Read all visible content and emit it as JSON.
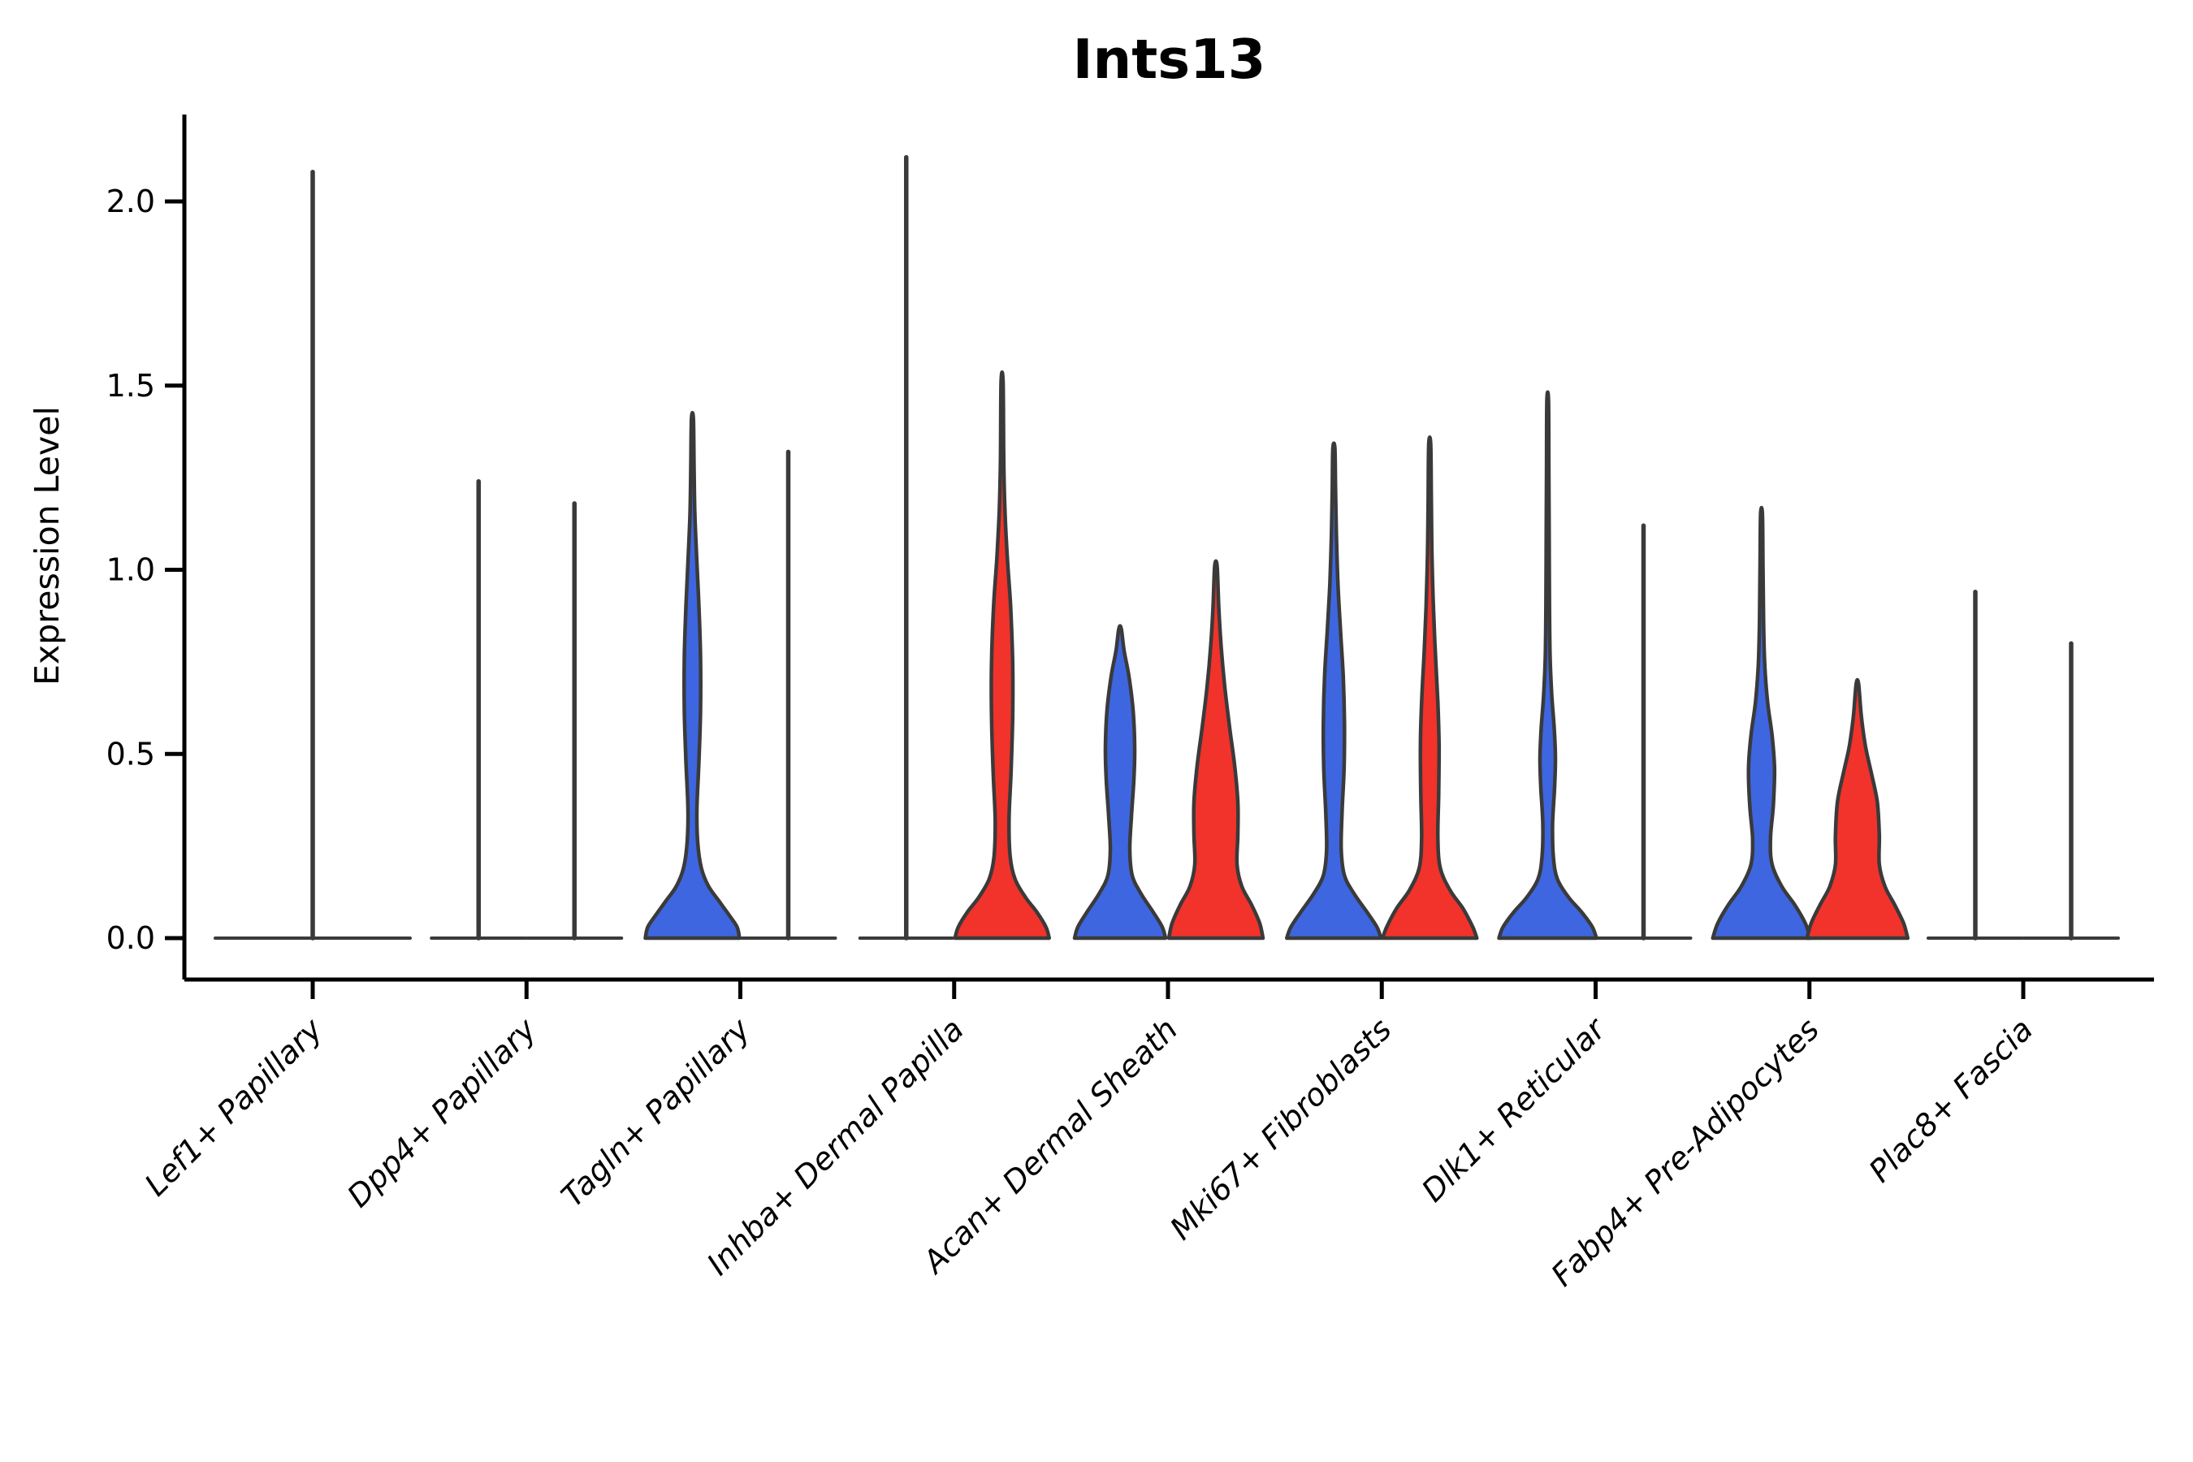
{
  "chart_data": {
    "type": "violin",
    "title": "Ints13",
    "xlabel": "",
    "ylabel": "Expression Level",
    "yticks": [
      {
        "label": "0.0",
        "value": 0.0
      },
      {
        "label": "0.5",
        "value": 0.5
      },
      {
        "label": "1.0",
        "value": 1.0
      },
      {
        "label": "1.5",
        "value": 1.5
      },
      {
        "label": "2.0",
        "value": 2.0
      }
    ],
    "ylim": [
      -0.06,
      2.24
    ],
    "grid": false,
    "legend": null,
    "colors": {
      "blue_fill": "#3E66E0",
      "red_fill": "#F1332B",
      "outline": "#3A3A3A",
      "axis": "#000000"
    },
    "groups": [
      {
        "label": "Lef1+ Papillary",
        "violins": [
          {
            "side": "center",
            "fill": "none",
            "max": 2.08,
            "shape": "spike",
            "base_halfwidth": 120
          }
        ]
      },
      {
        "label": "Dpp4+ Papillary",
        "violins": [
          {
            "side": "left",
            "fill": "blue",
            "max": 1.24,
            "shape": "spike",
            "base_halfwidth": 58
          },
          {
            "side": "right",
            "fill": "red",
            "max": 1.18,
            "shape": "spike",
            "base_halfwidth": 58
          }
        ]
      },
      {
        "label": "Tagln+ Papillary",
        "violins": [
          {
            "side": "left",
            "fill": "blue",
            "max": 1.41,
            "shape": "density",
            "profile": [
              [
                0,
                58
              ],
              [
                0.03,
                55
              ],
              [
                0.06,
                46
              ],
              [
                0.1,
                33
              ],
              [
                0.14,
                20
              ],
              [
                0.19,
                11
              ],
              [
                0.26,
                6.5
              ],
              [
                0.35,
                5.5
              ],
              [
                0.48,
                8
              ],
              [
                0.62,
                10
              ],
              [
                0.76,
                10
              ],
              [
                0.9,
                8
              ],
              [
                1.02,
                5.5
              ],
              [
                1.15,
                3
              ],
              [
                1.28,
                2
              ],
              [
                1.41,
                1.2
              ]
            ]
          },
          {
            "side": "right",
            "fill": "red",
            "max": 1.32,
            "shape": "spike",
            "base_halfwidth": 58
          }
        ]
      },
      {
        "label": "Inhba+ Dermal Papilla",
        "violins": [
          {
            "side": "left",
            "fill": "blue",
            "max": 2.12,
            "shape": "spike",
            "base_halfwidth": 57
          },
          {
            "side": "right",
            "fill": "red",
            "max": 1.51,
            "shape": "density",
            "profile": [
              [
                0,
                58
              ],
              [
                0.03,
                54
              ],
              [
                0.07,
                43
              ],
              [
                0.11,
                29
              ],
              [
                0.16,
                16
              ],
              [
                0.22,
                10
              ],
              [
                0.32,
                8.5
              ],
              [
                0.45,
                11
              ],
              [
                0.6,
                13
              ],
              [
                0.75,
                13
              ],
              [
                0.9,
                10.5
              ],
              [
                1.03,
                6.5
              ],
              [
                1.16,
                3.5
              ],
              [
                1.3,
                2
              ],
              [
                1.51,
                1.2
              ]
            ]
          }
        ]
      },
      {
        "label": "Acan+ Dermal Sheath",
        "violins": [
          {
            "side": "left",
            "fill": "blue",
            "max": 0.84,
            "shape": "density",
            "profile": [
              [
                0,
                56
              ],
              [
                0.03,
                52
              ],
              [
                0.07,
                41
              ],
              [
                0.12,
                26
              ],
              [
                0.17,
                15
              ],
              [
                0.24,
                12
              ],
              [
                0.33,
                14
              ],
              [
                0.43,
                17
              ],
              [
                0.52,
                18
              ],
              [
                0.62,
                16
              ],
              [
                0.71,
                11
              ],
              [
                0.78,
                5
              ],
              [
                0.84,
                1.5
              ]
            ]
          },
          {
            "side": "right",
            "fill": "red",
            "max": 1.01,
            "shape": "density",
            "profile": [
              [
                0,
                58
              ],
              [
                0.04,
                54
              ],
              [
                0.09,
                44
              ],
              [
                0.14,
                32
              ],
              [
                0.2,
                26
              ],
              [
                0.28,
                27
              ],
              [
                0.37,
                27
              ],
              [
                0.47,
                23
              ],
              [
                0.57,
                17
              ],
              [
                0.68,
                11
              ],
              [
                0.79,
                6.5
              ],
              [
                0.9,
                3.5
              ],
              [
                1.01,
                1.5
              ]
            ]
          }
        ]
      },
      {
        "label": "Mki67+ Fibroblasts",
        "violins": [
          {
            "side": "left",
            "fill": "blue",
            "max": 1.33,
            "shape": "density",
            "profile": [
              [
                0,
                58
              ],
              [
                0.03,
                53
              ],
              [
                0.07,
                41
              ],
              [
                0.12,
                25
              ],
              [
                0.17,
                13
              ],
              [
                0.24,
                9
              ],
              [
                0.34,
                10
              ],
              [
                0.46,
                12.5
              ],
              [
                0.58,
                13
              ],
              [
                0.71,
                11.5
              ],
              [
                0.84,
                8
              ],
              [
                0.96,
                5
              ],
              [
                1.1,
                3
              ],
              [
                1.22,
                2
              ],
              [
                1.33,
                1.2
              ]
            ]
          },
          {
            "side": "right",
            "fill": "red",
            "max": 1.34,
            "shape": "density",
            "profile": [
              [
                0,
                58
              ],
              [
                0.03,
                53
              ],
              [
                0.08,
                41
              ],
              [
                0.13,
                25
              ],
              [
                0.19,
                13
              ],
              [
                0.27,
                10
              ],
              [
                0.39,
                11
              ],
              [
                0.52,
                11.5
              ],
              [
                0.64,
                10
              ],
              [
                0.77,
                7
              ],
              [
                0.9,
                4.5
              ],
              [
                1.04,
                2.8
              ],
              [
                1.18,
                2
              ],
              [
                1.34,
                1.2
              ]
            ]
          }
        ]
      },
      {
        "label": "Dlk1+ Reticular",
        "violins": [
          {
            "side": "left",
            "fill": "blue",
            "max": 1.46,
            "shape": "density",
            "profile": [
              [
                0,
                60
              ],
              [
                0.03,
                55
              ],
              [
                0.07,
                42
              ],
              [
                0.11,
                26
              ],
              [
                0.16,
                12
              ],
              [
                0.22,
                7
              ],
              [
                0.31,
                6
              ],
              [
                0.41,
                8.5
              ],
              [
                0.49,
                9.5
              ],
              [
                0.57,
                8
              ],
              [
                0.66,
                5
              ],
              [
                0.76,
                3
              ],
              [
                0.9,
                2.2
              ],
              [
                1.1,
                1.8
              ],
              [
                1.28,
                1.4
              ],
              [
                1.46,
                1
              ]
            ]
          },
          {
            "side": "right",
            "fill": "red",
            "max": 1.12,
            "shape": "spike",
            "base_halfwidth": 58
          }
        ]
      },
      {
        "label": "Fabp4+ Pre-Adipocytes",
        "violins": [
          {
            "side": "left",
            "fill": "blue",
            "max": 1.15,
            "shape": "density",
            "profile": [
              [
                0,
                60
              ],
              [
                0.04,
                54
              ],
              [
                0.09,
                41
              ],
              [
                0.14,
                25
              ],
              [
                0.2,
                13
              ],
              [
                0.27,
                11
              ],
              [
                0.36,
                14.5
              ],
              [
                0.46,
                16
              ],
              [
                0.55,
                13
              ],
              [
                0.64,
                7.5
              ],
              [
                0.74,
                4
              ],
              [
                0.86,
                2.5
              ],
              [
                1.0,
                1.8
              ],
              [
                1.15,
                1.2
              ]
            ]
          },
          {
            "side": "right",
            "fill": "red",
            "max": 0.69,
            "shape": "density",
            "profile": [
              [
                0,
                62
              ],
              [
                0.04,
                57
              ],
              [
                0.09,
                46
              ],
              [
                0.14,
                34
              ],
              [
                0.2,
                27
              ],
              [
                0.28,
                27
              ],
              [
                0.37,
                24.5
              ],
              [
                0.45,
                17
              ],
              [
                0.52,
                10
              ],
              [
                0.6,
                5
              ],
              [
                0.69,
                1.5
              ]
            ]
          }
        ]
      },
      {
        "label": "Plac8+ Fascia",
        "violins": [
          {
            "side": "left",
            "fill": "blue",
            "max": 0.94,
            "shape": "spike",
            "base_halfwidth": 58
          },
          {
            "side": "right",
            "fill": "red",
            "max": 0.8,
            "shape": "spike",
            "base_halfwidth": 58
          }
        ]
      }
    ]
  }
}
